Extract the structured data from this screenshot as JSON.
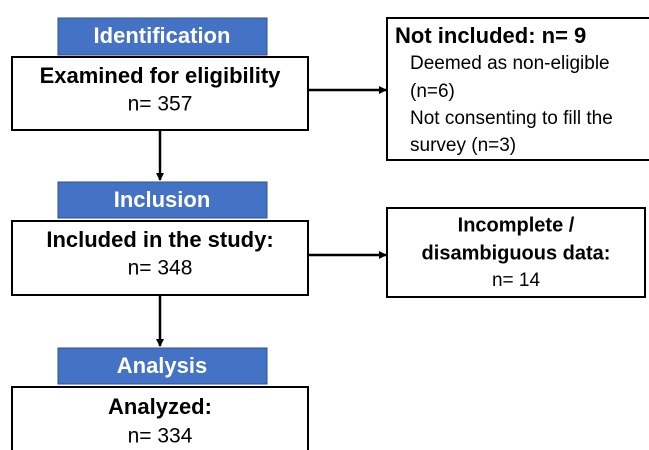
{
  "stages": [
    {
      "label": "Identification",
      "title": "Examined for eligibility",
      "count": "n= 357"
    },
    {
      "label": "Inclusion",
      "title": "Included in the study:",
      "count": "n= 348"
    },
    {
      "label": "Analysis",
      "title": "Analyzed:",
      "count": "n= 334"
    }
  ],
  "excluded": [
    {
      "lines": [
        "Not included: n= 9",
        "Deemed as non-eligible",
        "(n=6)",
        "Not consenting to fill the",
        "survey (n=3)"
      ]
    },
    {
      "lines": [
        "Incomplete /",
        "disambiguous data:",
        "n= 14"
      ]
    }
  ]
}
